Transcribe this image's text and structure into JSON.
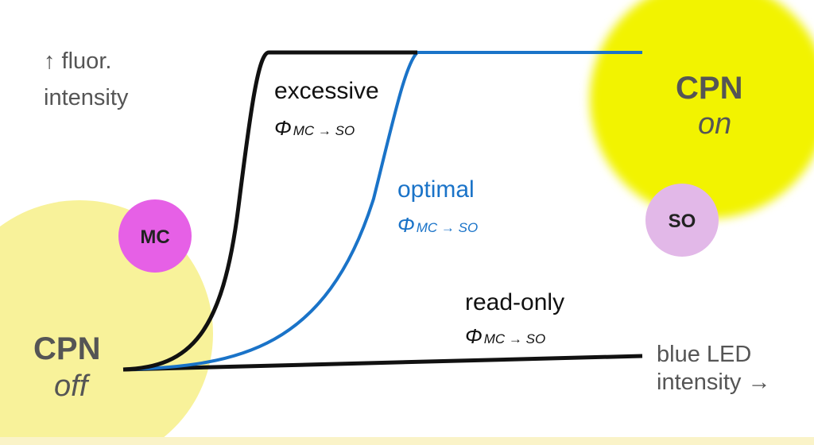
{
  "y_axis_label": [
    "↑ fluor.",
    "intensity"
  ],
  "x_axis_label": [
    "blue LED",
    "intensity →"
  ],
  "states": {
    "off": {
      "title": "CPN",
      "subtitle": "off"
    },
    "on": {
      "title": "CPN",
      "subtitle": "on"
    }
  },
  "molecules": [
    "MC",
    "SO"
  ],
  "curves": [
    {
      "name": "excessive",
      "symbol": "Φ",
      "subscript": "MC → SO"
    },
    {
      "name": "optimal",
      "symbol": "Φ",
      "subscript": "MC → SO"
    },
    {
      "name": "read-only",
      "symbol": "Φ",
      "subscript": "MC → SO"
    }
  ]
}
